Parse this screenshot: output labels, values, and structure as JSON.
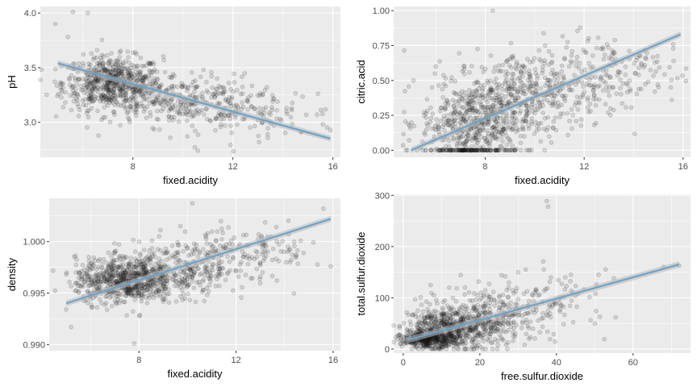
{
  "colors": {
    "panel_bg": "#ebebeb",
    "grid_major": "#ffffff",
    "point": "#1a1a1a",
    "smooth_line": "#6fa3c7",
    "smooth_band": "#b8b8b8"
  },
  "chart_data": [
    {
      "type": "scatter",
      "title": "",
      "xlabel": "fixed.acidity",
      "ylabel": "pH",
      "xlim": [
        4.3,
        16.3
      ],
      "ylim": [
        2.68,
        4.06
      ],
      "xticks": [
        8,
        12,
        16
      ],
      "xtick_labels": [
        "8",
        "12",
        "16"
      ],
      "yticks": [
        3.0,
        3.5,
        4.0
      ],
      "ytick_labels": [
        "3.0",
        "3.5",
        "4.0"
      ],
      "trend": {
        "x": [
          5.0,
          15.9
        ],
        "y": [
          3.54,
          2.85
        ]
      },
      "cloud": [
        {
          "x": 7.2,
          "y": 3.36,
          "sx": 1.0,
          "sy": 0.12,
          "n": 650
        },
        {
          "x": 9.8,
          "y": 3.2,
          "sx": 1.6,
          "sy": 0.12,
          "n": 300
        },
        {
          "x": 12.8,
          "y": 3.08,
          "sx": 1.7,
          "sy": 0.11,
          "n": 110
        }
      ],
      "extra_points": [
        [
          5.6,
          4.01
        ],
        [
          6.2,
          4.0
        ],
        [
          4.9,
          3.9
        ],
        [
          5.4,
          3.78
        ],
        [
          15.6,
          2.98
        ],
        [
          15.9,
          2.93
        ],
        [
          10.6,
          2.74
        ]
      ]
    },
    {
      "type": "scatter",
      "title": "",
      "xlabel": "fixed.acidity",
      "ylabel": "citric.acid",
      "xlim": [
        4.3,
        16.3
      ],
      "ylim": [
        -0.05,
        1.03
      ],
      "xticks": [
        8,
        12,
        16
      ],
      "xtick_labels": [
        "8",
        "12",
        "16"
      ],
      "yticks": [
        0.0,
        0.25,
        0.5,
        0.75,
        1.0
      ],
      "ytick_labels": [
        "0.00",
        "0.25",
        "0.50",
        "0.75",
        "1.00"
      ],
      "trend": {
        "x": [
          5.0,
          15.9
        ],
        "y": [
          0.0,
          0.83
        ]
      },
      "cloud": [
        {
          "x": 7.4,
          "y": 0.0,
          "sx": 0.9,
          "sy": 0.0,
          "n": 130
        },
        {
          "x": 7.6,
          "y": 0.2,
          "sx": 1.1,
          "sy": 0.14,
          "n": 520
        },
        {
          "x": 9.8,
          "y": 0.42,
          "sx": 1.5,
          "sy": 0.14,
          "n": 380
        },
        {
          "x": 12.8,
          "y": 0.58,
          "sx": 1.6,
          "sy": 0.13,
          "n": 160
        }
      ],
      "extra_points": [
        [
          8.3,
          1.0
        ],
        [
          15.6,
          0.76
        ],
        [
          15.5,
          0.45
        ],
        [
          14.3,
          0.44
        ],
        [
          5.1,
          0.5
        ],
        [
          6.0,
          0.6
        ],
        [
          9.8,
          0.0
        ],
        [
          10.4,
          0.0
        ]
      ]
    },
    {
      "type": "scatter",
      "title": "",
      "xlabel": "fixed.acidity",
      "ylabel": "density",
      "xlim": [
        4.3,
        16.3
      ],
      "ylim": [
        0.9894,
        1.0042
      ],
      "xticks": [
        8,
        12,
        16
      ],
      "xtick_labels": [
        "8",
        "12",
        "16"
      ],
      "yticks": [
        0.99,
        0.995,
        1.0
      ],
      "ytick_labels": [
        "0.990",
        "0.995",
        "1.000"
      ],
      "trend": {
        "x": [
          5.0,
          15.9
        ],
        "y": [
          0.994,
          1.0022
        ]
      },
      "cloud": [
        {
          "x": 7.4,
          "y": 0.9962,
          "sx": 1.0,
          "sy": 0.0011,
          "n": 650
        },
        {
          "x": 9.6,
          "y": 0.9972,
          "sx": 1.5,
          "sy": 0.0013,
          "n": 330
        },
        {
          "x": 12.5,
          "y": 0.9992,
          "sx": 1.6,
          "sy": 0.0012,
          "n": 130
        }
      ],
      "extra_points": [
        [
          10.2,
          1.0037
        ],
        [
          15.6,
          1.0032
        ],
        [
          15.9,
          0.9976
        ],
        [
          7.8,
          0.9901
        ],
        [
          5.2,
          0.9917
        ],
        [
          5.0,
          0.9934
        ]
      ]
    },
    {
      "type": "scatter",
      "title": "",
      "xlabel": "free.sulfur.dioxide",
      "ylabel": "total.sulfur.dioxide",
      "xlim": [
        -2.5,
        75
      ],
      "ylim": [
        -8,
        302
      ],
      "xticks": [
        0,
        20,
        40,
        60
      ],
      "xtick_labels": [
        "0",
        "20",
        "40",
        "60"
      ],
      "yticks": [
        0,
        100,
        200,
        300
      ],
      "ytick_labels": [
        "0",
        "100",
        "200",
        "300"
      ],
      "trend": {
        "x": [
          1.0,
          72.0
        ],
        "y": [
          17,
          165
        ]
      },
      "cloud": [
        {
          "x": 6.5,
          "y": 18,
          "sx": 3.5,
          "sy": 7,
          "n": 350
        },
        {
          "x": 12,
          "y": 40,
          "sx": 6.0,
          "sy": 20,
          "n": 550
        },
        {
          "x": 24,
          "y": 65,
          "sx": 8.0,
          "sy": 28,
          "n": 260
        },
        {
          "x": 38,
          "y": 92,
          "sx": 8.0,
          "sy": 30,
          "n": 90
        }
      ],
      "extra_points": [
        [
          37.5,
          289
        ],
        [
          37.8,
          278
        ],
        [
          51,
          145
        ],
        [
          55,
          138
        ],
        [
          68,
          160
        ],
        [
          72,
          163
        ],
        [
          32,
          155
        ],
        [
          12,
          120
        ],
        [
          8,
          105
        ]
      ]
    }
  ]
}
